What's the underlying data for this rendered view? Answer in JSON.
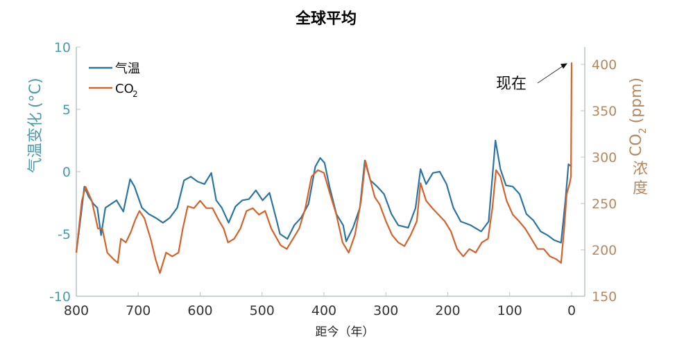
{
  "chart_data": {
    "type": "line",
    "title": "全球平均",
    "xlabel": "距今（年）",
    "ylabel_left": "气温变化 (°C)",
    "ylabel_left_parts": {
      "chars": "气温变化",
      "unit": "(°C)"
    },
    "ylabel_right": "CO2 浓度 (ppm)",
    "ylabel_right_parts": {
      "co": "CO",
      "sub": "2",
      "unit": "(ppm)",
      "chars": "浓度"
    },
    "xlim": [
      800,
      0
    ],
    "ylim_left": [
      -10,
      10
    ],
    "ylim_right": [
      150,
      412
    ],
    "xticks": [
      "800",
      "700",
      "600",
      "500",
      "400",
      "300",
      "200",
      "100",
      "0"
    ],
    "xtick_values": [
      800,
      700,
      600,
      500,
      400,
      300,
      200,
      100,
      0
    ],
    "yticks_left": [
      "10",
      "5",
      "0",
      "-5",
      "-10"
    ],
    "ytick_left_values": [
      10,
      5,
      0,
      -5,
      -10
    ],
    "yticks_right": [
      "400",
      "350",
      "300",
      "250",
      "200",
      "150"
    ],
    "ytick_right_values": [
      400,
      350,
      300,
      250,
      200,
      150
    ],
    "legend": {
      "position": "top-left",
      "items": [
        {
          "label": "气温",
          "sub": ""
        },
        {
          "label": "CO",
          "sub": "2"
        }
      ]
    },
    "annotation": {
      "text": "现在",
      "target_x": 0,
      "target_y_ppm": 402
    },
    "colors": {
      "temperature": "#2a74a4",
      "co2": "#d4622a",
      "left_axis": "#4a9aaa",
      "right_axis": "#b58860",
      "axis_line": "#b8c4c8"
    },
    "series": [
      {
        "name": "气温",
        "axis": "left",
        "x": [
          800,
          791,
          787,
          780,
          772,
          766,
          760,
          753,
          744,
          735,
          724,
          713,
          706,
          694,
          683,
          672,
          660,
          649,
          637,
          626,
          615,
          604,
          593,
          582,
          574,
          565,
          554,
          543,
          532,
          521,
          510,
          499,
          488,
          476,
          471,
          459,
          448,
          437,
          425,
          414,
          406,
          399,
          391,
          380,
          369,
          364,
          353,
          342,
          334,
          325,
          314,
          303,
          291,
          280,
          264,
          252,
          244,
          235,
          224,
          213,
          202,
          191,
          179,
          163,
          146,
          134,
          123,
          115,
          106,
          95,
          84,
          73,
          62,
          50,
          39,
          28,
          17,
          10,
          5,
          0
        ],
        "values": [
          -6.5,
          -2.9,
          -1.2,
          -2,
          -2.6,
          -2.9,
          -5.1,
          -2.9,
          -2.6,
          -2.3,
          -3.2,
          -0.6,
          -1.2,
          -2.9,
          -3.4,
          -3.7,
          -4.1,
          -3.7,
          -2.9,
          -0.7,
          -0.4,
          -0.8,
          -1,
          -0.1,
          -2.3,
          -2.9,
          -4.1,
          -2.8,
          -2.3,
          -2.2,
          -1.5,
          -2.3,
          -1.7,
          -4,
          -5,
          -5.4,
          -4.3,
          -3.7,
          -2.6,
          0.4,
          1.1,
          0.7,
          -1.2,
          -3.4,
          -4.3,
          -5.6,
          -4.5,
          -2.9,
          0.9,
          -0.7,
          -1.2,
          -1.8,
          -3.4,
          -4.3,
          -4.5,
          -2.9,
          0.2,
          -1,
          -0.1,
          0,
          -1,
          -2.9,
          -4,
          -4.3,
          -4.8,
          -4,
          2.5,
          0.2,
          -1.1,
          -1.2,
          -1.8,
          -3.4,
          -3.9,
          -4.8,
          -5.1,
          -5.5,
          -5.7,
          -2.3,
          0.6,
          0.4
        ]
      },
      {
        "name": "CO2",
        "axis": "right",
        "x": [
          800,
          791,
          785,
          775,
          765,
          758,
          750,
          740,
          733,
          728,
          720,
          712,
          705,
          698,
          690,
          680,
          672,
          665,
          655,
          645,
          635,
          628,
          620,
          610,
          600,
          590,
          580,
          570,
          562,
          555,
          545,
          535,
          525,
          515,
          505,
          495,
          485,
          470,
          460,
          450,
          440,
          430,
          420,
          410,
          400,
          390,
          380,
          370,
          360,
          350,
          340,
          333,
          325,
          318,
          310,
          300,
          290,
          280,
          270,
          260,
          250,
          244,
          235,
          225,
          215,
          205,
          195,
          185,
          175,
          165,
          155,
          145,
          135,
          128,
          122,
          115,
          105,
          95,
          85,
          75,
          65,
          55,
          45,
          35,
          25,
          17,
          12,
          8,
          3,
          1,
          0
        ],
        "values": [
          197,
          253,
          268,
          253,
          223,
          223,
          197,
          190,
          186,
          212,
          208,
          219,
          232,
          242,
          234,
          212,
          190,
          175,
          197,
          193,
          197,
          223,
          247,
          245,
          253,
          245,
          245,
          232,
          223,
          208,
          212,
          223,
          242,
          245,
          238,
          242,
          223,
          205,
          201,
          212,
          223,
          245,
          279,
          286,
          283,
          260,
          238,
          208,
          197,
          216,
          253,
          296,
          275,
          257,
          249,
          231,
          216,
          208,
          204,
          216,
          231,
          272,
          253,
          245,
          238,
          231,
          220,
          201,
          193,
          201,
          197,
          208,
          212,
          245,
          286,
          279,
          253,
          238,
          231,
          223,
          212,
          201,
          201,
          193,
          190,
          186,
          223,
          260,
          272,
          279,
          402
        ]
      }
    ]
  }
}
